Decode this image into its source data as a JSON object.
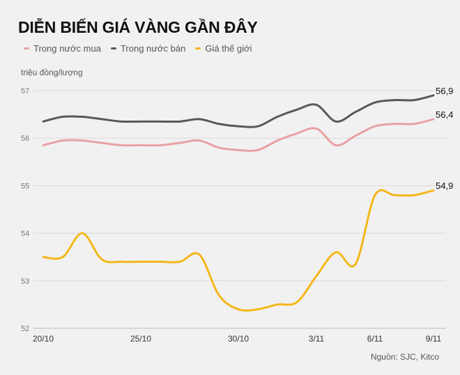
{
  "chart_data": {
    "type": "line",
    "title": "DIỄN BIẾN GIÁ VÀNG GẦN ĐÂY",
    "ylabel": "triệu đồng/lượng",
    "source": "Nguồn: SJC, Kitco",
    "ylim": [
      52,
      57
    ],
    "yticks": [
      "57",
      "56",
      "55",
      "54",
      "53",
      "52"
    ],
    "ytick_values": [
      57,
      56,
      55,
      54,
      53,
      52
    ],
    "x": [
      "20/10",
      "21/10",
      "22/10",
      "23/10",
      "24/10",
      "25/10",
      "26/10",
      "27/10",
      "28/10",
      "29/10",
      "30/10",
      "31/10",
      "1/11",
      "2/11",
      "3/11",
      "4/11",
      "5/11",
      "6/11",
      "7/11",
      "8/11",
      "9/11"
    ],
    "xticks": [
      "20/10",
      "25/10",
      "30/10",
      "3/11",
      "6/11",
      "9/11"
    ],
    "grid": true,
    "legend": "top-left",
    "series": [
      {
        "name": "Trong nước mua",
        "color": "#e8a1a3",
        "end_label": "56,4",
        "values": [
          55.85,
          55.95,
          55.95,
          55.9,
          55.85,
          55.85,
          55.85,
          55.9,
          55.95,
          55.8,
          55.75,
          55.75,
          55.95,
          56.1,
          56.2,
          55.85,
          56.05,
          56.25,
          56.3,
          56.3,
          56.4
        ]
      },
      {
        "name": "Trong nước bán",
        "color": "#58585a",
        "end_label": "56,9",
        "values": [
          56.35,
          56.45,
          56.45,
          56.4,
          56.35,
          56.35,
          56.35,
          56.35,
          56.4,
          56.3,
          56.25,
          56.25,
          56.45,
          56.6,
          56.7,
          56.35,
          56.55,
          56.75,
          56.8,
          56.8,
          56.9
        ]
      },
      {
        "name": "Giá thế giới",
        "color": "#f4b719",
        "end_label": "54,9",
        "values": [
          53.5,
          53.5,
          54.0,
          53.45,
          53.4,
          53.4,
          53.4,
          53.4,
          53.55,
          52.7,
          52.4,
          52.4,
          52.5,
          52.55,
          53.1,
          53.6,
          53.35,
          54.8,
          54.8,
          54.8,
          54.9
        ]
      }
    ]
  }
}
